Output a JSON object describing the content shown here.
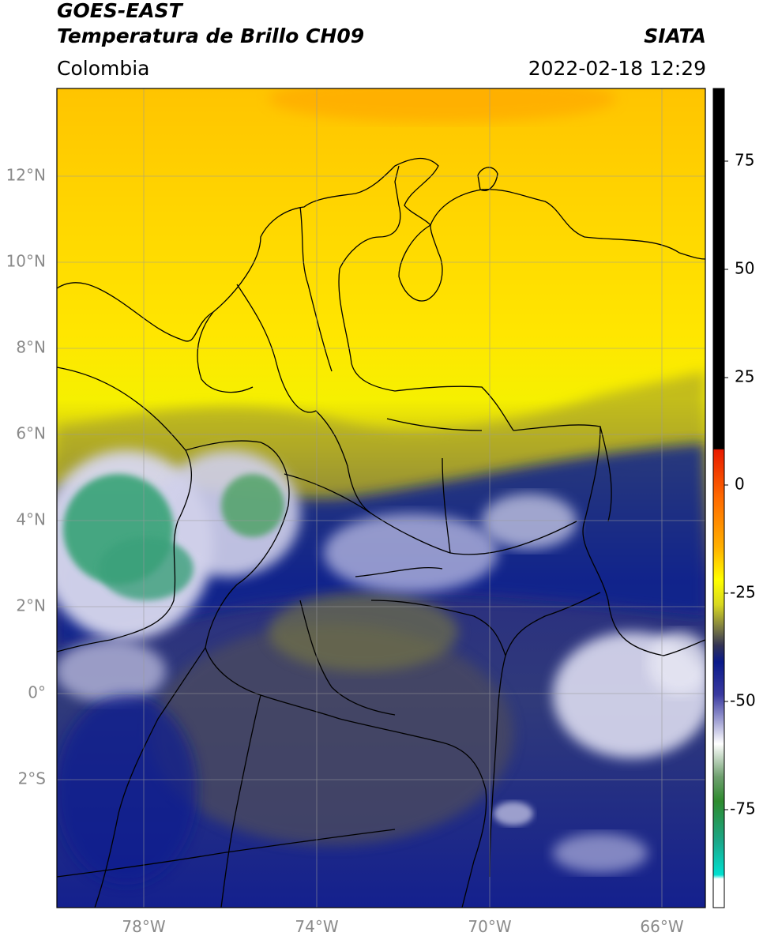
{
  "header": {
    "satellite": "GOES-EAST",
    "product": "Temperatura de Brillo CH09",
    "region": "Colombia",
    "agency": "SIATA",
    "datetime": "2022-02-18 12:29"
  },
  "map": {
    "lon_labels": [
      "78°W",
      "74°W",
      "70°W",
      "66°W"
    ],
    "lat_labels": [
      "12°N",
      "10°N",
      "8°N",
      "6°N",
      "4°N",
      "2°N",
      "0°",
      "2°S"
    ]
  },
  "colorbar": {
    "tick_labels": [
      "75",
      "50",
      "25",
      "0",
      "-25",
      "-50",
      "-75"
    ],
    "colors": {
      "black": "#000000",
      "red": "#e81a00",
      "orange": "#ff9a00",
      "yellow": "#ffff00",
      "olive": "#8a8a3a",
      "navy": "#0a1a8a",
      "white": "#ffffff",
      "green": "#2e8b2e",
      "cyan": "#00e0d0"
    }
  }
}
